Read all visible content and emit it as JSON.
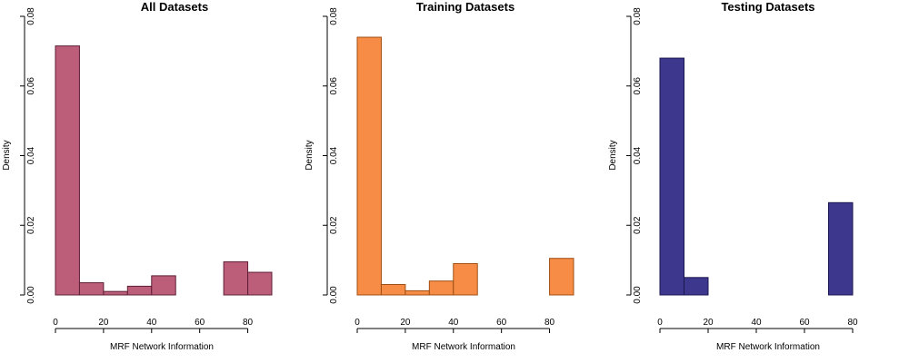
{
  "chart_data": [
    {
      "type": "bar",
      "title": "All Datasets",
      "xlabel": "MRF Network Information",
      "ylabel": "Density",
      "xlim": [
        0,
        90
      ],
      "ylim": [
        0,
        0.08
      ],
      "xticks": [
        0,
        20,
        40,
        60,
        80
      ],
      "xtick_labels": [
        "0",
        "20",
        "40",
        "60",
        "80"
      ],
      "yticks": [
        0,
        0.02,
        0.04,
        0.06,
        0.08
      ],
      "ytick_labels": [
        "0.00",
        "0.02",
        "0.04",
        "0.06",
        "0.08"
      ],
      "bin_edges": [
        0,
        10,
        20,
        30,
        40,
        50,
        60,
        70,
        80,
        90
      ],
      "values": [
        0.0715,
        0.0035,
        0.001,
        0.0025,
        0.0055,
        0.0,
        0.0,
        0.0095,
        0.0065
      ],
      "fill": "#bc5d7a",
      "stroke": "#5e1f36"
    },
    {
      "type": "bar",
      "title": "Training Datasets",
      "xlabel": "MRF Network Information",
      "ylabel": "Density",
      "xlim": [
        0,
        90
      ],
      "ylim": [
        0,
        0.08
      ],
      "xticks": [
        0,
        20,
        40,
        60,
        80
      ],
      "xtick_labels": [
        "0",
        "20",
        "40",
        "60",
        "80"
      ],
      "yticks": [
        0,
        0.02,
        0.04,
        0.06,
        0.08
      ],
      "ytick_labels": [
        "0.00",
        "0.02",
        "0.04",
        "0.06",
        "0.08"
      ],
      "bin_edges": [
        0,
        10,
        20,
        30,
        40,
        50,
        60,
        70,
        80,
        90
      ],
      "values": [
        0.074,
        0.003,
        0.0012,
        0.004,
        0.009,
        0.0,
        0.0,
        0.0,
        0.0105
      ],
      "fill": "#f68c45",
      "stroke": "#a04f14"
    },
    {
      "type": "bar",
      "title": "Testing Datasets",
      "xlabel": "MRF Network Information",
      "ylabel": "Density",
      "xlim": [
        0,
        80
      ],
      "ylim": [
        0,
        0.08
      ],
      "xticks": [
        0,
        20,
        40,
        60,
        80
      ],
      "xtick_labels": [
        "0",
        "20",
        "40",
        "60",
        "80"
      ],
      "yticks": [
        0,
        0.02,
        0.04,
        0.06,
        0.08
      ],
      "ytick_labels": [
        "0.00",
        "0.02",
        "0.04",
        "0.06",
        "0.08"
      ],
      "bin_edges": [
        0,
        10,
        20,
        30,
        40,
        50,
        60,
        70,
        80
      ],
      "values": [
        0.068,
        0.005,
        0.0,
        0.0,
        0.0,
        0.0,
        0.0,
        0.0265
      ],
      "fill": "#3d378e",
      "stroke": "#1a1650"
    }
  ]
}
